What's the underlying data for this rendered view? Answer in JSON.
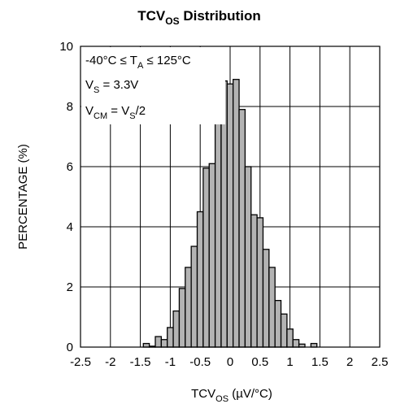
{
  "chart_data": {
    "type": "bar",
    "title": {
      "main": "TCV",
      "sub": "OS",
      "tail": " Distribution"
    },
    "xlabel": {
      "main": "TCV",
      "sub": "OS",
      "tail": " (µV/°C)"
    },
    "ylabel": "PERCENTAGE (%)",
    "xlim": [
      -2.5,
      2.5
    ],
    "ylim": [
      0,
      10
    ],
    "x_ticks": [
      -2.5,
      -2,
      -1.5,
      -1,
      -0.5,
      0,
      0.5,
      1,
      1.5,
      2,
      2.5
    ],
    "x_tick_labels": [
      "-2.5",
      "-2",
      "-1.5",
      "-1",
      "-0.5",
      "0",
      "0.5",
      "1",
      "1.5",
      "2",
      "2.5"
    ],
    "y_ticks": [
      0,
      2,
      4,
      6,
      8,
      10
    ],
    "y_tick_labels": [
      "0",
      "2",
      "4",
      "6",
      "8",
      "10"
    ],
    "grid": true,
    "bin_width": 0.1,
    "bin_centers": [
      -1.4,
      -1.3,
      -1.2,
      -1.1,
      -1.0,
      -0.9,
      -0.8,
      -0.7,
      -0.6,
      -0.5,
      -0.4,
      -0.3,
      -0.2,
      -0.1,
      0.0,
      0.1,
      0.2,
      0.3,
      0.4,
      0.5,
      0.6,
      0.7,
      0.8,
      0.9,
      1.0,
      1.1,
      1.2,
      1.4
    ],
    "values": [
      0.12,
      0.03,
      0.35,
      0.25,
      0.65,
      1.2,
      1.95,
      2.65,
      3.35,
      4.5,
      5.95,
      6.1,
      8.85,
      8.85,
      8.75,
      8.9,
      7.9,
      6.0,
      4.4,
      4.3,
      3.25,
      2.65,
      1.55,
      1.1,
      0.6,
      0.25,
      0.1,
      0.12
    ],
    "bar_fill": "#b3b3b3",
    "bar_stroke": "#000000",
    "annotations": [
      [
        {
          "t": "-40°C ≤ T",
          "sub": false
        },
        {
          "t": "A",
          "sub": true
        },
        {
          "t": " ≤ 125°C",
          "sub": false
        }
      ],
      [
        {
          "t": "V",
          "sub": false
        },
        {
          "t": "S",
          "sub": true
        },
        {
          "t": " = 3.3V",
          "sub": false
        }
      ],
      [
        {
          "t": "V",
          "sub": false
        },
        {
          "t": "CM",
          "sub": true
        },
        {
          "t": " = V",
          "sub": false
        },
        {
          "t": "S",
          "sub": true
        },
        {
          "t": "/2",
          "sub": false
        }
      ]
    ]
  }
}
